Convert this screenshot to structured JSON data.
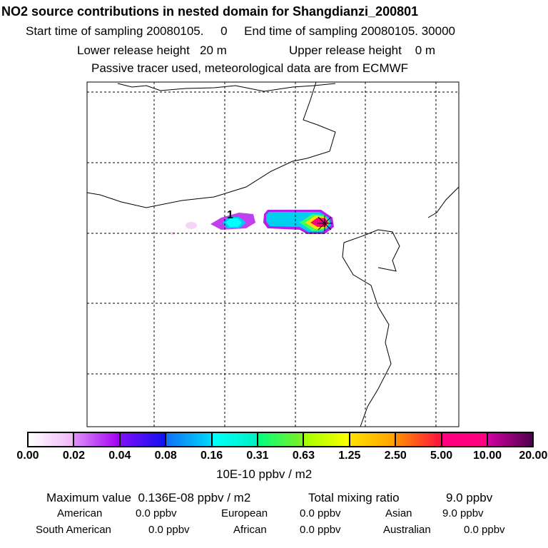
{
  "title": "NO2 source contributions in nested domain for Shangdianzi_200801",
  "line2": "Start time of sampling 20080105.     0     End time of sampling 20080105. 30000",
  "line3a": "Lower release height   20 m",
  "line3b": "Upper release height    0 m",
  "line4": "Passive tracer used, meteorological data are from ECMWF",
  "map": {
    "marker_label": "1",
    "station_icon": "asterisk-icon"
  },
  "colorbar": {
    "ticks": [
      "0.00",
      "0.02",
      "0.04",
      "0.08",
      "0.16",
      "0.31",
      "0.63",
      "1.25",
      "2.50",
      "5.00",
      "10.00",
      "20.00"
    ],
    "segments": [
      [
        "#ffffff",
        "#f0b8f8"
      ],
      [
        "#e090f8",
        "#a000f0"
      ],
      [
        "#8010f8",
        "#1010f0"
      ],
      [
        "#1070f8",
        "#00d8f8"
      ],
      [
        "#00ffff",
        "#00f0c0"
      ],
      [
        "#00ff80",
        "#80f020"
      ],
      [
        "#a0ff00",
        "#ffff00"
      ],
      [
        "#ffe000",
        "#ffa000"
      ],
      [
        "#ff9000",
        "#ff1040"
      ],
      [
        "#ff0080",
        "#ff0080"
      ],
      [
        "#d000a0",
        "#500050"
      ]
    ],
    "unit": "10E-10 ppbv / m2"
  },
  "summary": {
    "max_label": "Maximum value  0.136E-08 ppbv / m2",
    "total_label": "Total mixing ratio",
    "total_value": "9.0 ppbv",
    "regions": [
      {
        "name": "American",
        "value": "0.0 ppbv"
      },
      {
        "name": "European",
        "value": "0.0 ppbv"
      },
      {
        "name": "Asian",
        "value": "9.0 ppbv"
      },
      {
        "name": "South American",
        "value": "0.0 ppbv"
      },
      {
        "name": "African",
        "value": "0.0 ppbv"
      },
      {
        "name": "Australian",
        "value": "0.0 ppbv"
      }
    ]
  }
}
